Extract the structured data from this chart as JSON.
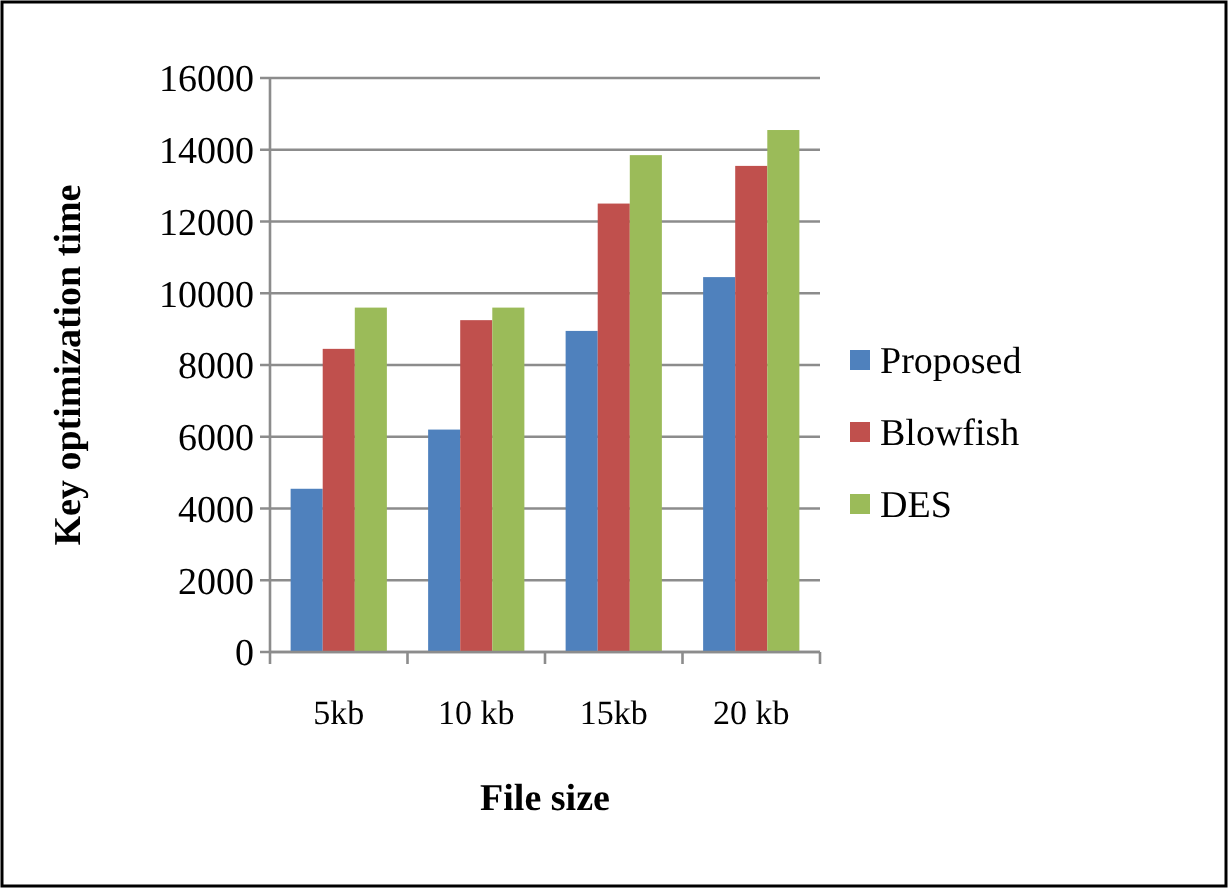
{
  "chart_data": {
    "type": "bar",
    "xlabel": "File size",
    "ylabel": "Key optimization time",
    "categories": [
      "5kb",
      "10 kb",
      "15kb",
      "20 kb"
    ],
    "series": [
      {
        "name": "Proposed",
        "color": "#4f81bd",
        "values": [
          4550,
          6200,
          8950,
          10450
        ]
      },
      {
        "name": "Blowfish",
        "color": "#c0504d",
        "values": [
          8450,
          9250,
          12500,
          13550
        ]
      },
      {
        "name": "DES",
        "color": "#9bbb59",
        "values": [
          9600,
          9600,
          13850,
          14550
        ]
      }
    ],
    "ylim": [
      0,
      16000
    ],
    "yticks": [
      0,
      2000,
      4000,
      6000,
      8000,
      10000,
      12000,
      14000,
      16000
    ],
    "grid": "y",
    "legend": "right"
  }
}
